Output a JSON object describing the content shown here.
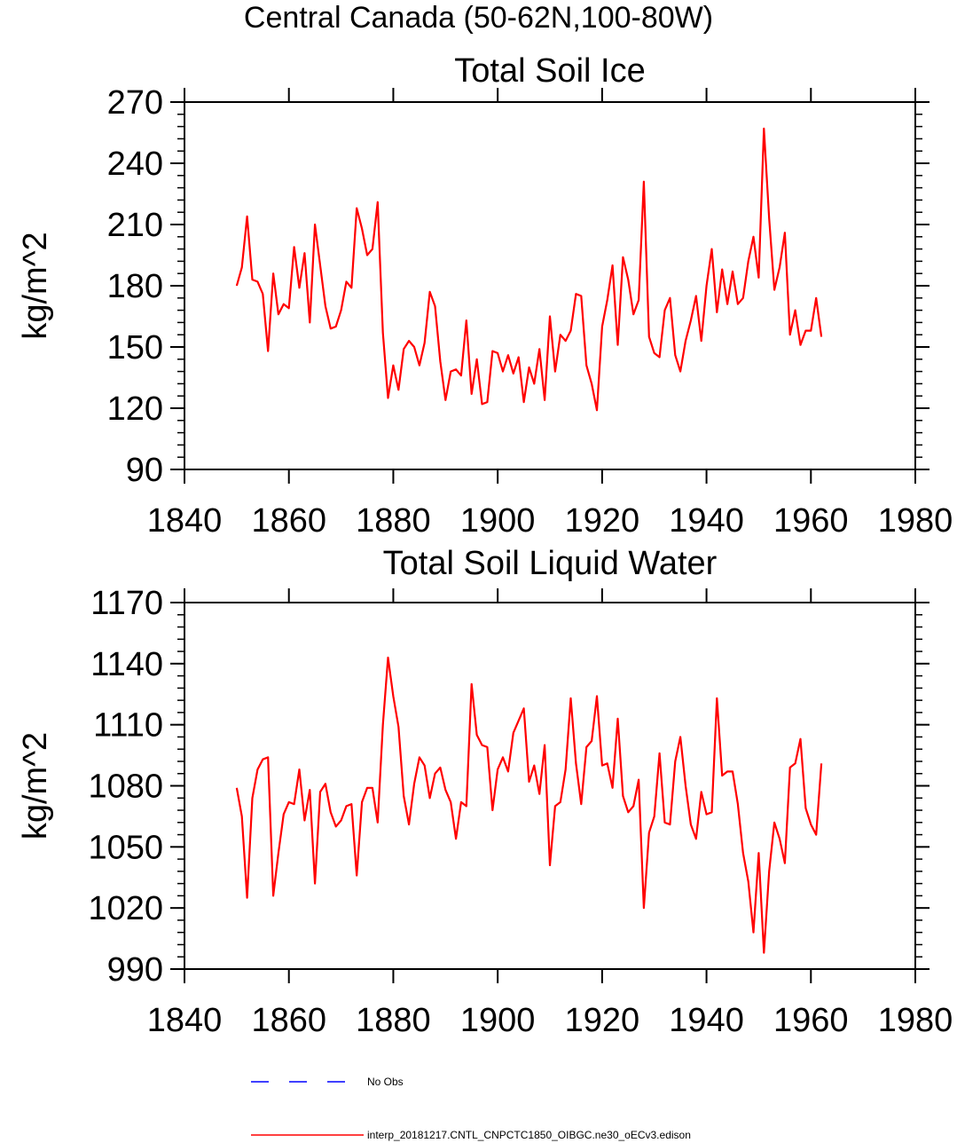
{
  "main_title": "Central Canada (50-62N,100-80W)",
  "chart_data": [
    {
      "type": "line",
      "title": "Total Soil Ice",
      "xlabel": "",
      "ylabel": "kg/m^2",
      "xlim": [
        1840,
        1980
      ],
      "ylim": [
        90,
        270
      ],
      "x_ticks": [
        1840,
        1860,
        1880,
        1900,
        1920,
        1940,
        1960,
        1980
      ],
      "x_tick_labels": [
        "1840",
        "1860",
        "1880",
        "1900",
        "1920",
        "1940",
        "1960",
        "1980"
      ],
      "y_ticks": [
        90,
        120,
        150,
        180,
        210,
        240,
        270
      ],
      "y_tick_labels": [
        "90",
        "120",
        "150",
        "180",
        "210",
        "240",
        "270"
      ],
      "series": [
        {
          "name": "interp_20181217.CNTL_CNPCTC1850_OIBGC.ne30_oECv3.edison",
          "color": "#ff0000",
          "x_start": 1850,
          "x_step": 1,
          "values": [
            180,
            189,
            214,
            183,
            182,
            176,
            148,
            186,
            166,
            171,
            169,
            199,
            179,
            196,
            162,
            210,
            190,
            170,
            159,
            160,
            168,
            182,
            179,
            218,
            208,
            195,
            198,
            221,
            157,
            125,
            141,
            129,
            149,
            153,
            150,
            141,
            152,
            177,
            170,
            143,
            124,
            138,
            139,
            136,
            163,
            127,
            144,
            122,
            123,
            148,
            147,
            138,
            146,
            137,
            145,
            123,
            140,
            132,
            149,
            124,
            165,
            138,
            156,
            153,
            158,
            176,
            175,
            141,
            132,
            119,
            160,
            173,
            190,
            151,
            194,
            183,
            166,
            173,
            231,
            155,
            147,
            145,
            168,
            174,
            146,
            138,
            153,
            163,
            175,
            153,
            180,
            198,
            167,
            188,
            171,
            187,
            171,
            174,
            192,
            204,
            184,
            257,
            213,
            178,
            189,
            206,
            156,
            168,
            151,
            158,
            158,
            174,
            155
          ]
        }
      ]
    },
    {
      "type": "line",
      "title": "Total Soil Liquid Water",
      "xlabel": "",
      "ylabel": "kg/m^2",
      "xlim": [
        1840,
        1980
      ],
      "ylim": [
        990,
        1170
      ],
      "x_ticks": [
        1840,
        1860,
        1880,
        1900,
        1920,
        1940,
        1960,
        1980
      ],
      "x_tick_labels": [
        "1840",
        "1860",
        "1880",
        "1900",
        "1920",
        "1940",
        "1960",
        "1980"
      ],
      "y_ticks": [
        990,
        1020,
        1050,
        1080,
        1110,
        1140,
        1170
      ],
      "y_tick_labels": [
        "990",
        "1020",
        "1050",
        "1080",
        "1110",
        "1140",
        "1170"
      ],
      "series": [
        {
          "name": "interp_20181217.CNTL_CNPCTC1850_OIBGC.ne30_oECv3.edison",
          "color": "#ff0000",
          "x_start": 1850,
          "x_step": 1,
          "values": [
            1079,
            1065,
            1025,
            1074,
            1088,
            1093,
            1094,
            1026,
            1047,
            1066,
            1072,
            1071,
            1088,
            1063,
            1078,
            1032,
            1077,
            1081,
            1067,
            1060,
            1063,
            1070,
            1071,
            1036,
            1072,
            1079,
            1079,
            1062,
            1110,
            1143,
            1124,
            1109,
            1075,
            1061,
            1081,
            1094,
            1090,
            1074,
            1086,
            1089,
            1078,
            1072,
            1054,
            1072,
            1070,
            1130,
            1105,
            1100,
            1099,
            1068,
            1088,
            1094,
            1087,
            1106,
            1112,
            1118,
            1082,
            1090,
            1076,
            1100,
            1041,
            1070,
            1072,
            1088,
            1123,
            1091,
            1071,
            1099,
            1102,
            1124,
            1090,
            1091,
            1079,
            1113,
            1075,
            1067,
            1070,
            1083,
            1020,
            1057,
            1065,
            1096,
            1062,
            1061,
            1092,
            1104,
            1080,
            1061,
            1054,
            1077,
            1066,
            1067,
            1123,
            1085,
            1087,
            1087,
            1071,
            1047,
            1033,
            1008,
            1047,
            998,
            1038,
            1062,
            1054,
            1042,
            1089,
            1091,
            1103,
            1069,
            1061,
            1056,
            1091
          ]
        }
      ]
    }
  ],
  "legend": {
    "entries": [
      {
        "label": "No Obs",
        "color": "#0000ff",
        "style": "dashed"
      },
      {
        "label": "interp_20181217.CNTL_CNPCTC1850_OIBGC.ne30_oECv3.edison",
        "color": "#ff0000",
        "style": "solid"
      }
    ]
  }
}
